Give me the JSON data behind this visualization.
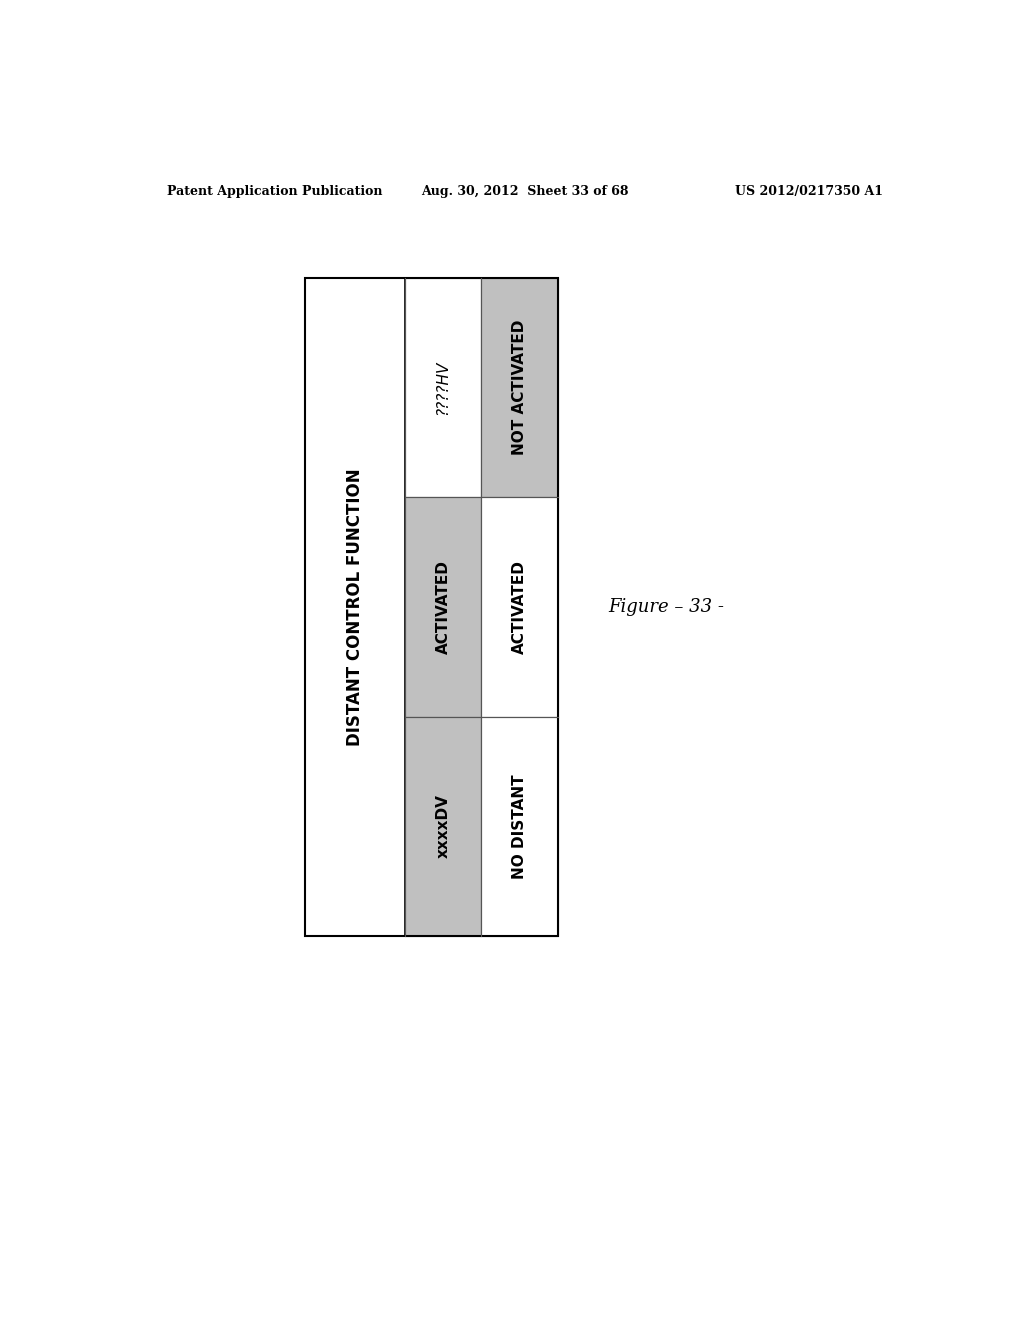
{
  "bg_color": "#ffffff",
  "page_header_left": "Patent Application Publication",
  "page_header_center": "Aug. 30, 2012  Sheet 33 of 68",
  "page_header_right": "US 2012/0217350 A1",
  "figure_caption": "Figure – 33 -",
  "table": {
    "outer_border_color": "#000000",
    "inner_border_color": "#555555",
    "gray_color": "#c0c0c0",
    "col1_label": "DISTANT CONTROL FUNCTION",
    "col1_bg": "#ffffff",
    "rows": [
      {
        "col2_text": "????HV",
        "col2_bg": "#ffffff",
        "col2_italic": true,
        "col3_text": "NOT ACTIVATED",
        "col3_bg": "#c0c0c0"
      },
      {
        "col2_text": "ACTIVATED",
        "col2_bg": "#c0c0c0",
        "col2_italic": false,
        "col3_text": "ACTIVATED",
        "col3_bg": "#ffffff"
      },
      {
        "col2_text": "xxxxDV",
        "col2_bg": "#c0c0c0",
        "col2_italic": false,
        "col3_text": "NO DISTANT",
        "col3_bg": "#ffffff"
      }
    ]
  }
}
